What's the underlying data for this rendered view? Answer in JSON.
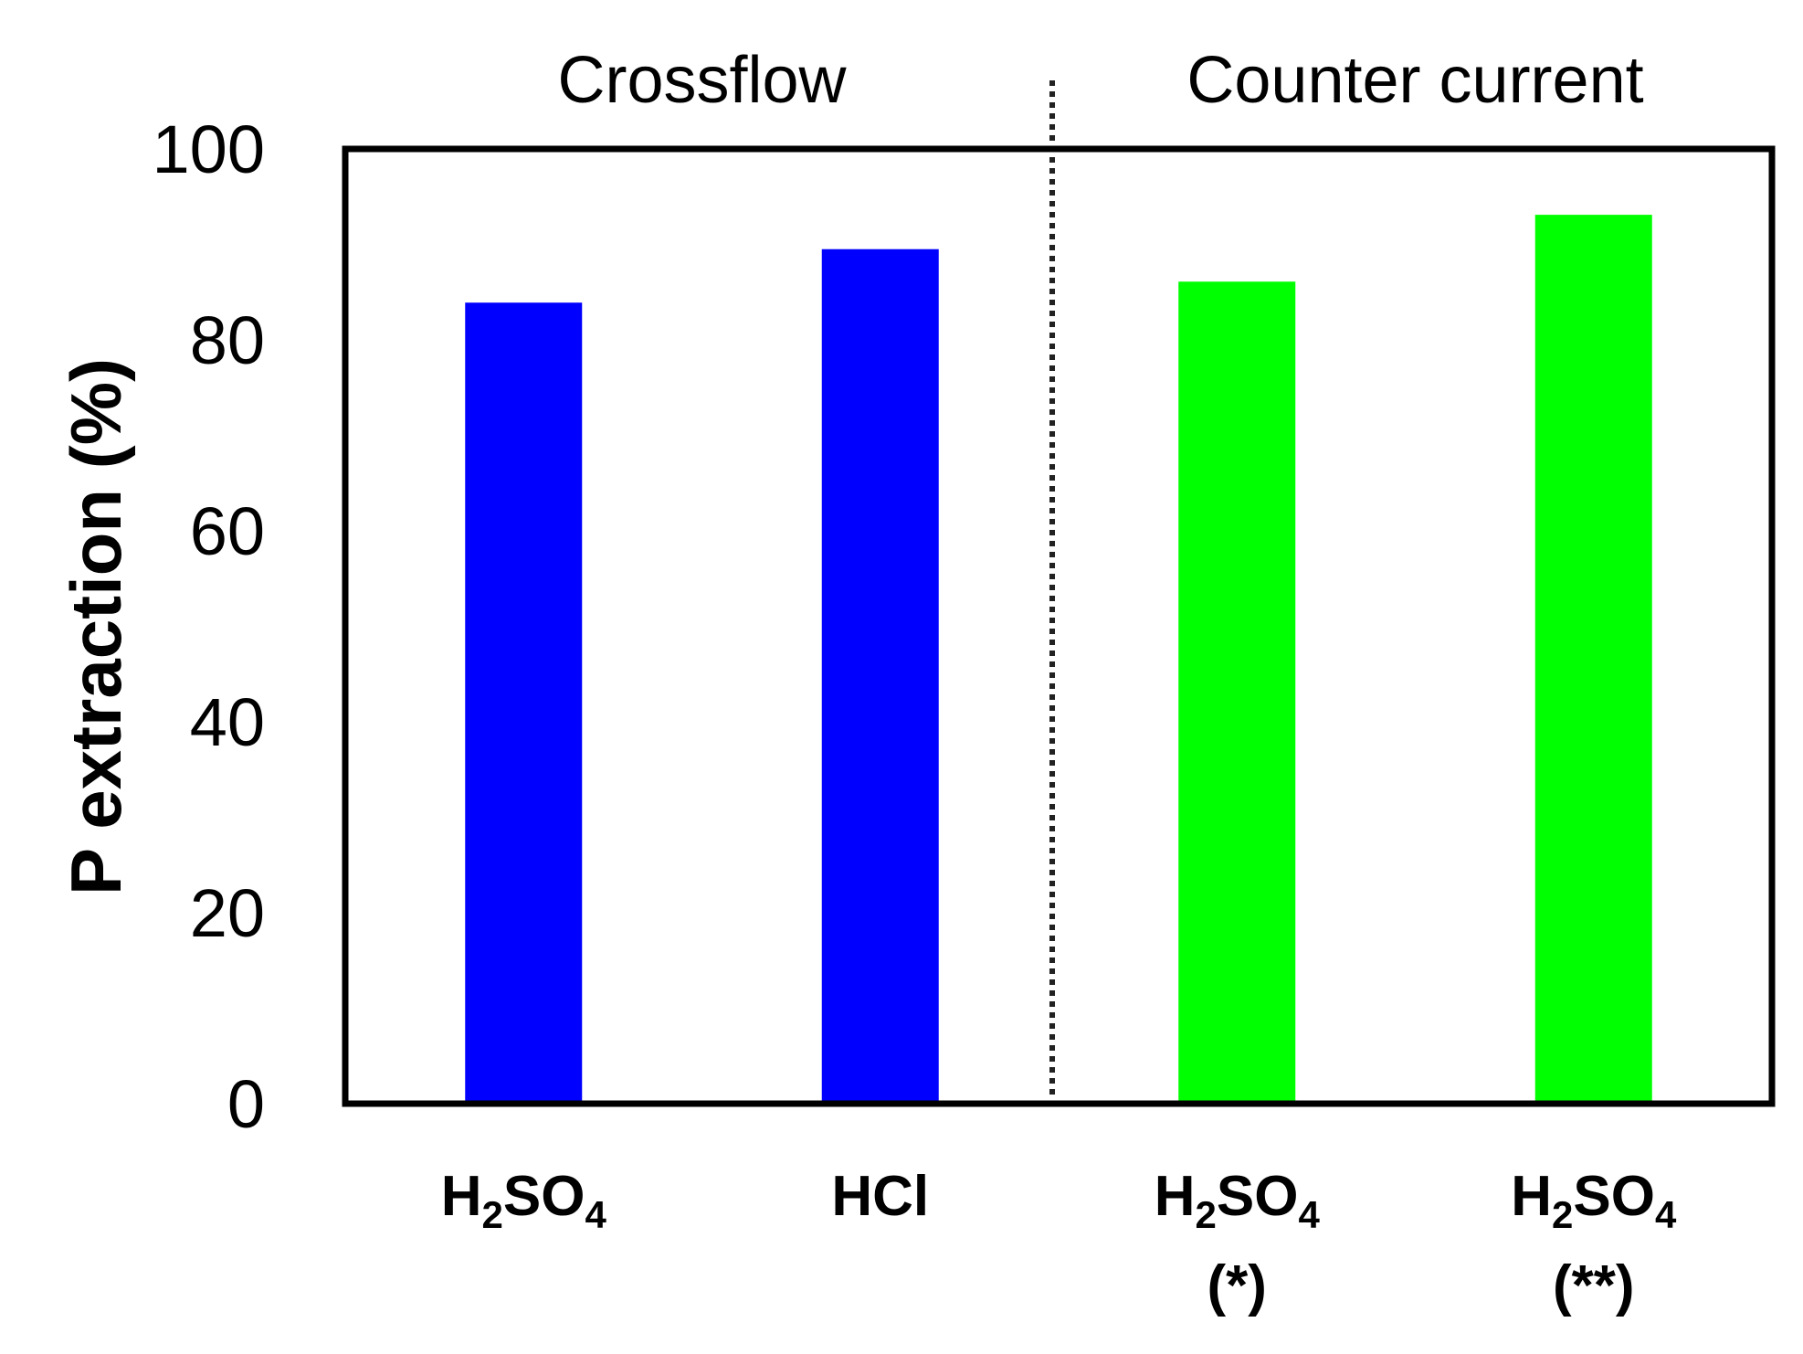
{
  "chart_data": {
    "type": "bar",
    "ylabel": "P extraction (%)",
    "ylim": [
      0,
      100
    ],
    "yticks": [
      0,
      20,
      40,
      60,
      80,
      100
    ],
    "groups": [
      {
        "label": "Crossflow",
        "categories": [
          0,
          1
        ]
      },
      {
        "label": "Counter current",
        "categories": [
          2,
          3
        ]
      }
    ],
    "categories": [
      {
        "base": "H",
        "sub1": "2",
        "mid": "SO",
        "sub2": "4",
        "note": ""
      },
      {
        "base": "HCl",
        "sub1": "",
        "mid": "",
        "sub2": "",
        "note": ""
      },
      {
        "base": "H",
        "sub1": "2",
        "mid": "SO",
        "sub2": "4",
        "note": "(*)"
      },
      {
        "base": "H",
        "sub1": "2",
        "mid": "SO",
        "sub2": "4",
        "note": "(**)"
      }
    ],
    "values": [
      83.9,
      89.5,
      86.1,
      93.1
    ],
    "colors": [
      "#0000ff",
      "#0000ff",
      "#00ff00",
      "#00ff00"
    ],
    "grid": false,
    "legend": "none"
  }
}
